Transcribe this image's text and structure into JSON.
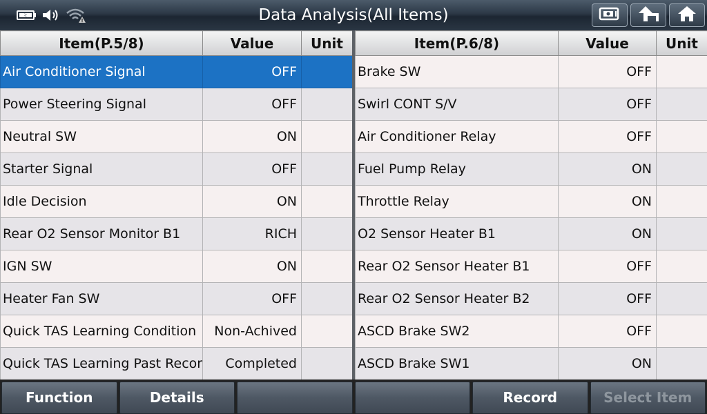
{
  "header": {
    "title": "Data Analysis(All Items)",
    "status_icons": [
      "battery-icon",
      "speaker-icon",
      "wifi-warning-icon"
    ],
    "buttons": [
      "screenshot-icon",
      "back-up-icon",
      "home-icon"
    ]
  },
  "left_table": {
    "headers": {
      "item": "Item(P.5/8)",
      "value": "Value",
      "unit": "Unit"
    },
    "rows": [
      {
        "item": "Air Conditioner Signal",
        "value": "OFF",
        "unit": ""
      },
      {
        "item": "Power Steering Signal",
        "value": "OFF",
        "unit": ""
      },
      {
        "item": "Neutral SW",
        "value": "ON",
        "unit": ""
      },
      {
        "item": "Starter Signal",
        "value": "OFF",
        "unit": ""
      },
      {
        "item": "Idle Decision",
        "value": "ON",
        "unit": ""
      },
      {
        "item": "Rear O2 Sensor Monitor B1",
        "value": "RICH",
        "unit": ""
      },
      {
        "item": "IGN SW",
        "value": "ON",
        "unit": ""
      },
      {
        "item": "Heater Fan SW",
        "value": "OFF",
        "unit": ""
      },
      {
        "item": "Quick TAS Learning Condition",
        "value": "Non-Achived",
        "unit": ""
      },
      {
        "item": "Quick TAS Learning Past Record",
        "value": "Completed",
        "unit": ""
      }
    ],
    "selected_row": 0
  },
  "right_table": {
    "headers": {
      "item": "Item(P.6/8)",
      "value": "Value",
      "unit": "Unit"
    },
    "rows": [
      {
        "item": "Brake SW",
        "value": "OFF",
        "unit": ""
      },
      {
        "item": "Swirl CONT S/V",
        "value": "OFF",
        "unit": ""
      },
      {
        "item": "Air Conditioner Relay",
        "value": "OFF",
        "unit": ""
      },
      {
        "item": "Fuel Pump Relay",
        "value": "ON",
        "unit": ""
      },
      {
        "item": "Throttle Relay",
        "value": "ON",
        "unit": ""
      },
      {
        "item": "O2 Sensor Heater B1",
        "value": "ON",
        "unit": ""
      },
      {
        "item": "Rear O2 Sensor Heater B1",
        "value": "OFF",
        "unit": ""
      },
      {
        "item": "Rear O2 Sensor Heater B2",
        "value": "OFF",
        "unit": ""
      },
      {
        "item": "ASCD Brake SW2",
        "value": "OFF",
        "unit": ""
      },
      {
        "item": "ASCD Brake SW1",
        "value": "ON",
        "unit": ""
      }
    ]
  },
  "footer": {
    "buttons": [
      {
        "label": "Function",
        "enabled": true
      },
      {
        "label": "Details",
        "enabled": true
      },
      {
        "label": "",
        "enabled": true
      },
      {
        "label": "",
        "enabled": true
      },
      {
        "label": "Record",
        "enabled": true
      },
      {
        "label": "Select Item",
        "enabled": false
      }
    ]
  },
  "colors": {
    "selected_row": "#1c72c4",
    "header_bar": "#2c3846",
    "disabled_text": "#8e969e"
  }
}
